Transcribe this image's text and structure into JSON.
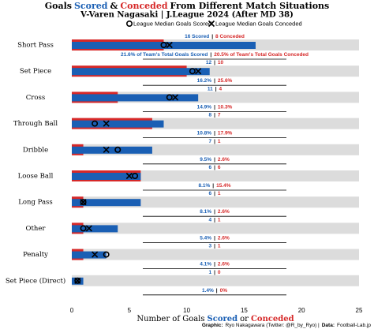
{
  "chart_data": {
    "type": "bar",
    "title_parts": [
      "Goals",
      "Scored",
      "&",
      "Conceded",
      "From Different Match Situations"
    ],
    "subtitle": "V-Varen Nagasaki | J.League 2024 (After MD 38)",
    "categories": [
      "Short Pass",
      "Set Piece",
      "Cross",
      "Through Ball",
      "Dribble",
      "Loose Ball",
      "Long Pass",
      "Other",
      "Penalty",
      "Set Piece (Direct)"
    ],
    "series": [
      {
        "color": "#1a5fb4",
        "values": [
          16,
          12,
          11,
          8,
          7,
          6,
          6,
          4,
          3,
          1
        ],
        "value_labels": [
          "16 Scored",
          "12",
          "11",
          "8",
          "7",
          "6",
          "6",
          "4",
          "3",
          "1"
        ]
      },
      {
        "color": "#d62828",
        "values": [
          8,
          10,
          4,
          7,
          1,
          6,
          1,
          1,
          1,
          0
        ],
        "value_labels": [
          "8 Conceded",
          "10",
          "4",
          "7",
          "1",
          "6",
          "1",
          "1",
          "1",
          "0"
        ]
      }
    ],
    "label_separator": "|",
    "pct_series": [
      {
        "values": [
          21.6,
          16.2,
          14.9,
          10.8,
          9.5,
          8.1,
          8.1,
          5.4,
          4.1,
          1.4
        ],
        "value_labels": [
          "21.6% of Team's Total Goals Scored",
          "16.2%",
          "14.9%",
          "10.8%",
          "9.5%",
          "8.1%",
          "8.1%",
          "5.4%",
          "4.1%",
          "1.4%"
        ]
      },
      {
        "values": [
          20.5,
          25.6,
          10.3,
          17.9,
          2.6,
          15.4,
          2.6,
          2.6,
          2.6,
          0
        ],
        "value_labels": [
          "20.5% of Team's Total Goals Conceded",
          "25.6%",
          "10.3%",
          "17.9%",
          "2.6%",
          "15.4%",
          "2.6%",
          "2.6%",
          "2.6%",
          "0%"
        ]
      }
    ],
    "medians": [
      {
        "name": "League Median Goals Scored",
        "marker": "circle",
        "values": [
          8,
          10.5,
          8.5,
          2,
          4,
          5.5,
          1,
          1,
          3,
          0.5
        ]
      },
      {
        "name": "League Median Goals Conceded",
        "marker": "cross",
        "values": [
          8.5,
          11,
          9,
          3,
          3,
          5,
          1,
          1.5,
          2,
          0.5
        ]
      }
    ],
    "xlim": [
      0,
      25
    ],
    "xticks": [
      0,
      5,
      10,
      15,
      20,
      25
    ],
    "xlabel_parts": [
      "Number of Goals",
      "Scored",
      "or",
      "Conceded"
    ],
    "caption_parts": [
      "Graphic:",
      "Ryo Nakagawara (Twitter: @R_by_Ryo) |",
      "Data:",
      "Football-Lab.jp"
    ]
  }
}
